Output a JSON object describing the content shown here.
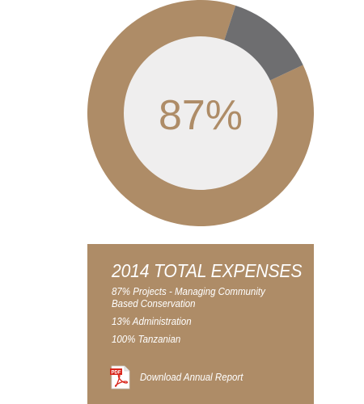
{
  "chart_data": {
    "type": "pie",
    "center_label": "87%",
    "slices": [
      {
        "label": "Projects",
        "value": 87,
        "color": "#ae8c67"
      },
      {
        "label": "Administration",
        "value": 13,
        "color": "#6e6e70"
      }
    ]
  },
  "colors": {
    "accent": "#ae8c67",
    "secondary": "#6e6e70",
    "donut_center": "#efeeee",
    "panel_text": "#ffffff"
  },
  "panel": {
    "title": "2014 TOTAL EXPENSES",
    "stats": [
      {
        "line1": "87% Projects - Managing Community",
        "line2": "Based Conservation"
      },
      {
        "line1": "13% Administration"
      },
      {
        "line1": "100% Tanzanian"
      }
    ],
    "download": {
      "icon": "pdf-icon",
      "icon_text": "PDF",
      "label": "Download Annual Report"
    }
  }
}
